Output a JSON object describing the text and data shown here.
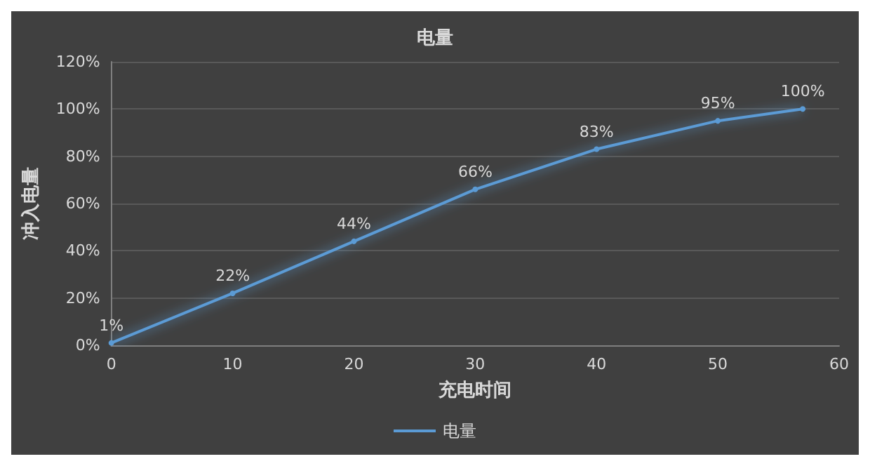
{
  "chart_data": {
    "type": "line",
    "title": "电量",
    "xlabel": "充电时间",
    "ylabel": "冲入电量",
    "x": [
      0,
      10,
      20,
      30,
      40,
      50,
      57
    ],
    "series": [
      {
        "name": "电量",
        "color": "#5b9bd5",
        "values": [
          1,
          22,
          44,
          66,
          83,
          95,
          100
        ],
        "value_labels": [
          "1%",
          "22%",
          "44%",
          "66%",
          "83%",
          "95%",
          "100%"
        ]
      }
    ],
    "xlim": [
      0,
      60
    ],
    "xticks": [
      0,
      10,
      20,
      30,
      40,
      50,
      60
    ],
    "ylim": [
      0,
      120
    ],
    "yticks": [
      {
        "value": 0,
        "label": "0%"
      },
      {
        "value": 20,
        "label": "20%"
      },
      {
        "value": 40,
        "label": "40%"
      },
      {
        "value": 60,
        "label": "60%"
      },
      {
        "value": 80,
        "label": "80%"
      },
      {
        "value": 100,
        "label": "100%"
      },
      {
        "value": 120,
        "label": "120%"
      }
    ],
    "grid": "y",
    "legend": "bottom",
    "marker": "circle",
    "line_style": "solid"
  }
}
